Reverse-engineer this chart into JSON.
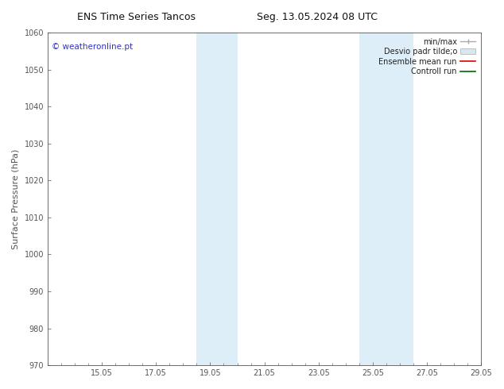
{
  "title_left": "ENS Time Series Tancos",
  "title_right": "Seg. 13.05.2024 08 UTC",
  "ylabel": "Surface Pressure (hPa)",
  "ylim": [
    970,
    1060
  ],
  "yticks": [
    970,
    980,
    990,
    1000,
    1010,
    1020,
    1030,
    1040,
    1050,
    1060
  ],
  "xlim": [
    0,
    16
  ],
  "xtick_labels": [
    "15.05",
    "17.05",
    "19.05",
    "21.05",
    "23.05",
    "25.05",
    "27.05",
    "29.05"
  ],
  "xtick_positions_days": [
    2,
    4,
    6,
    8,
    10,
    12,
    14,
    16
  ],
  "shaded_bands": [
    {
      "x_start_day": 5.5,
      "x_end_day": 7.0,
      "color": "#ddeef8"
    },
    {
      "x_start_day": 11.5,
      "x_end_day": 13.5,
      "color": "#ddeef8"
    }
  ],
  "watermark_text": "© weatheronline.pt",
  "watermark_color": "#3333bb",
  "watermark_fontsize": 7.5,
  "bg_color": "#ffffff",
  "plot_bg_color": "#ffffff",
  "title_fontsize": 9,
  "tick_fontsize": 7,
  "ylabel_fontsize": 8,
  "spine_color": "#555555",
  "tick_color": "#555555",
  "legend_fontsize": 7,
  "legend_text_color": "#222222",
  "minmax_color": "#aaaaaa",
  "desvio_facecolor": "#d8e8f0",
  "desvio_edgecolor": "#aaaaaa",
  "ensemble_color": "#dd0000",
  "control_color": "#006600"
}
